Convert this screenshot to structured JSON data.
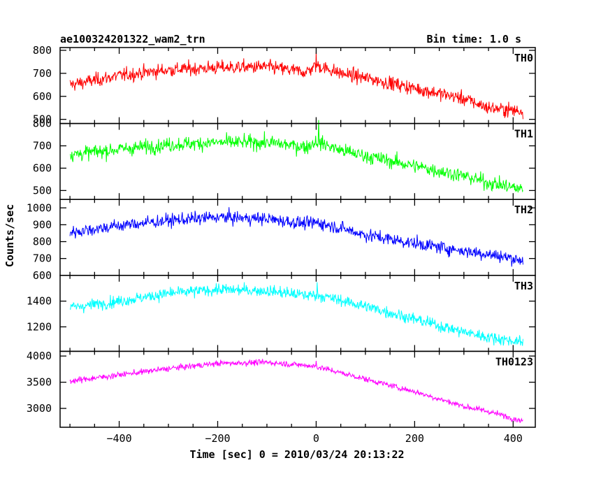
{
  "chart_data": {
    "type": "line",
    "title": "ae100324201322_wam2_trn",
    "bin_time": "Bin time: 1.0 s",
    "xlabel": "Time [sec] 0 = 2010/03/24 20:13:22",
    "ylabel": "Counts/sec",
    "xlim": [
      -520,
      445
    ],
    "xticks": [
      -400,
      -200,
      0,
      200,
      400
    ],
    "x_range": [
      -500,
      420
    ],
    "grid": false,
    "panels": [
      {
        "name": "TH0",
        "color": "#ff0000",
        "ylim": [
          482,
          812
        ],
        "yticks": [
          500,
          600,
          700,
          800
        ],
        "trend": [
          [
            -500,
            650
          ],
          [
            -400,
            690
          ],
          [
            -300,
            715
          ],
          [
            -200,
            725
          ],
          [
            -100,
            728
          ],
          [
            -20,
            705
          ],
          [
            0,
            735
          ],
          [
            50,
            700
          ],
          [
            100,
            680
          ],
          [
            200,
            635
          ],
          [
            300,
            590
          ],
          [
            350,
            550
          ],
          [
            420,
            535
          ]
        ],
        "noise": 30,
        "spikes": [
          [
            0,
            45
          ]
        ]
      },
      {
        "name": "TH1",
        "color": "#00ff00",
        "ylim": [
          460,
          800
        ],
        "yticks": [
          500,
          600,
          700,
          800
        ],
        "trend": [
          [
            -500,
            660
          ],
          [
            -400,
            685
          ],
          [
            -300,
            705
          ],
          [
            -200,
            715
          ],
          [
            -100,
            715
          ],
          [
            -20,
            695
          ],
          [
            0,
            720
          ],
          [
            50,
            680
          ],
          [
            100,
            655
          ],
          [
            200,
            610
          ],
          [
            300,
            565
          ],
          [
            350,
            535
          ],
          [
            420,
            505
          ]
        ],
        "noise": 32,
        "spikes": [
          [
            5,
            70
          ]
        ]
      },
      {
        "name": "TH2",
        "color": "#0000ff",
        "ylim": [
          600,
          1050
        ],
        "yticks": [
          600,
          700,
          800,
          900,
          1000
        ],
        "trend": [
          [
            -500,
            855
          ],
          [
            -400,
            895
          ],
          [
            -300,
            925
          ],
          [
            -200,
            945
          ],
          [
            -100,
            935
          ],
          [
            -20,
            905
          ],
          [
            0,
            915
          ],
          [
            50,
            880
          ],
          [
            100,
            840
          ],
          [
            200,
            790
          ],
          [
            300,
            745
          ],
          [
            350,
            725
          ],
          [
            420,
            690
          ]
        ],
        "noise": 38,
        "spikes": []
      },
      {
        "name": "TH3",
        "color": "#00ffff",
        "ylim": [
          1010,
          1600
        ],
        "yticks": [
          1200,
          1400
        ],
        "trend": [
          [
            -500,
            1350
          ],
          [
            -400,
            1400
          ],
          [
            -300,
            1460
          ],
          [
            -200,
            1490
          ],
          [
            -100,
            1480
          ],
          [
            -20,
            1445
          ],
          [
            0,
            1450
          ],
          [
            50,
            1405
          ],
          [
            100,
            1360
          ],
          [
            200,
            1260
          ],
          [
            300,
            1160
          ],
          [
            350,
            1120
          ],
          [
            420,
            1080
          ]
        ],
        "noise": 45,
        "spikes": [
          [
            2,
            70
          ]
        ]
      },
      {
        "name": "TH0123",
        "color": "#ff00ff",
        "ylim": [
          2640,
          4090
        ],
        "yticks": [
          3000,
          3500,
          4000
        ],
        "trend": [
          [
            -500,
            3520
          ],
          [
            -400,
            3640
          ],
          [
            -300,
            3760
          ],
          [
            -200,
            3860
          ],
          [
            -100,
            3880
          ],
          [
            -20,
            3820
          ],
          [
            0,
            3800
          ],
          [
            50,
            3680
          ],
          [
            100,
            3560
          ],
          [
            200,
            3320
          ],
          [
            300,
            3040
          ],
          [
            350,
            2940
          ],
          [
            420,
            2760
          ]
        ],
        "noise": 55,
        "spikes": [
          [
            0,
            130
          ]
        ]
      }
    ]
  }
}
